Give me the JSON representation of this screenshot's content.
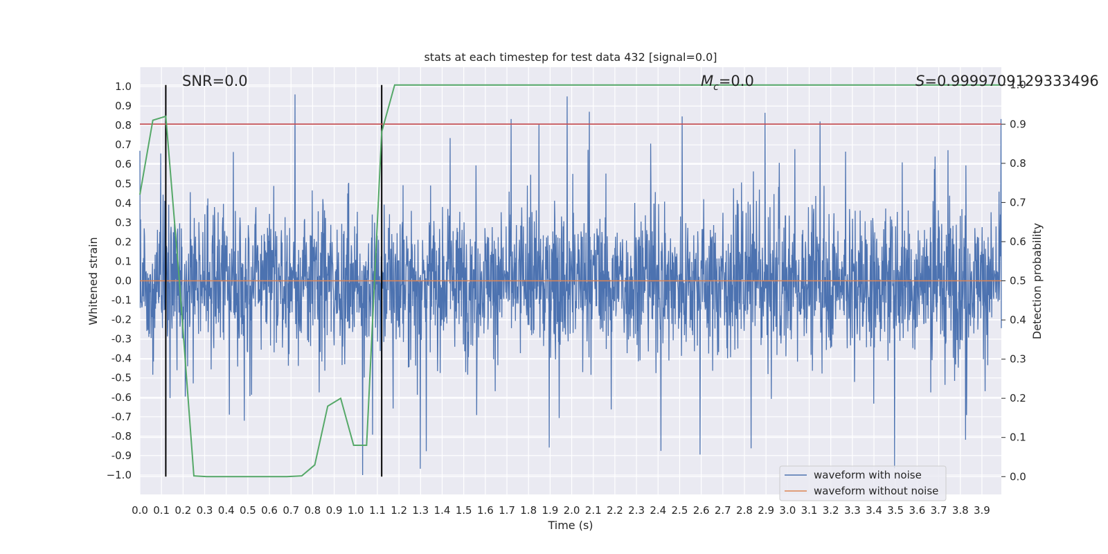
{
  "chart_data": {
    "type": "line",
    "title": "stats at each timestep for test data 432 [signal=0.0]",
    "xlabel": "Time (s)",
    "ylabel": "Whitened strain",
    "y2label": "Detection probability",
    "xlim": [
      0.0,
      3.99
    ],
    "ylim": [
      -1.1,
      1.1
    ],
    "y2lim": [
      -0.0455,
      1.0455
    ],
    "xticks": [
      "0.0",
      "0.1",
      "0.2",
      "0.3",
      "0.4",
      "0.5",
      "0.6",
      "0.7",
      "0.8",
      "0.9",
      "1.0",
      "1.1",
      "1.2",
      "1.3",
      "1.4",
      "1.5",
      "1.6",
      "1.7",
      "1.8",
      "1.9",
      "2.0",
      "2.1",
      "2.2",
      "2.3",
      "2.4",
      "2.5",
      "2.6",
      "2.7",
      "2.8",
      "2.9",
      "3.0",
      "3.1",
      "3.2",
      "3.3",
      "3.4",
      "3.5",
      "3.6",
      "3.7",
      "3.8",
      "3.9"
    ],
    "yticks": [
      "1.0",
      "0.9",
      "0.8",
      "0.7",
      "0.6",
      "0.5",
      "0.4",
      "0.3",
      "0.2",
      "0.1",
      "0.0",
      "-0.1",
      "-0.2",
      "-0.3",
      "-0.4",
      "-0.5",
      "-0.6",
      "-0.7",
      "-0.8",
      "-0.9",
      "−1.0"
    ],
    "y2ticks": [
      "1.0",
      "0.9",
      "0.8",
      "0.7",
      "0.6",
      "0.5",
      "0.4",
      "0.3",
      "0.2",
      "0.1",
      "0.0"
    ],
    "grid": true,
    "legend_position": "lower-right",
    "annotations": {
      "snr": "SNR=0.0",
      "mc_symbol": "M",
      "mc_sub": "c",
      "mc_value": "=0.0",
      "s_symbol": "S",
      "s_value": "=0.9999709129333496"
    },
    "series": [
      {
        "name": "waveform with noise",
        "color": "#4c72b0",
        "note": "dense noise trace, amplitude roughly within ±1.0"
      },
      {
        "name": "waveform without noise",
        "color": "#dd8452",
        "x": [
          0.0,
          3.99
        ],
        "y": [
          0.0,
          0.0
        ]
      },
      {
        "color": "#55a868",
        "axis": "right",
        "x": [
          0.0,
          0.06,
          0.12,
          0.18,
          0.25,
          0.31,
          0.37,
          0.43,
          0.49,
          0.56,
          0.62,
          0.68,
          0.75,
          0.81,
          0.87,
          0.93,
          0.99,
          1.05,
          1.12,
          1.18,
          1.3,
          1.6,
          2.0,
          2.5,
          3.0,
          3.5,
          3.99
        ],
        "y": [
          0.72,
          0.91,
          0.92,
          0.52,
          0.002,
          0.0,
          0.0,
          0.0,
          0.0,
          0.0,
          0.0,
          0.0,
          0.002,
          0.03,
          0.18,
          0.2,
          0.08,
          0.08,
          0.88,
          1.0,
          1.0,
          1.0,
          1.0,
          1.0,
          1.0,
          1.0,
          1.0
        ]
      }
    ],
    "threshold_line": {
      "axis": "right",
      "value": 0.9,
      "color": "#c44e52"
    },
    "vertical_lines": [
      {
        "x": 0.12,
        "color": "#000000"
      },
      {
        "x": 1.12,
        "color": "#000000"
      }
    ]
  }
}
